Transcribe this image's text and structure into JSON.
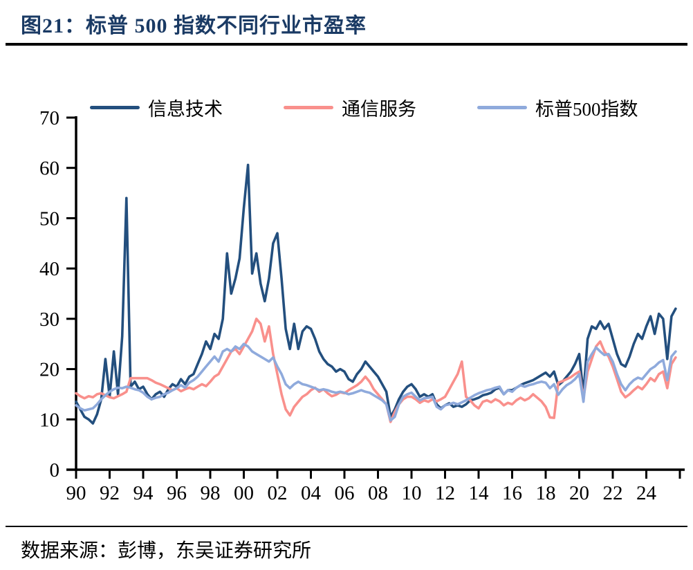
{
  "figure": {
    "title": "图21：标普 500 指数不同行业市盈率",
    "source": "数据来源：彭博，东吴证券研究所"
  },
  "colors": {
    "title_text": "#1A3A64",
    "axis": "#000000",
    "rules": "#000000"
  },
  "chart_data": {
    "type": "line",
    "title": "标普 500 指数不同行业市盈率",
    "xlabel": "",
    "ylabel": "",
    "grid": false,
    "legend_position": "top",
    "ylim": [
      0,
      70
    ],
    "y_ticks": [
      0,
      10,
      20,
      30,
      40,
      50,
      60,
      70
    ],
    "xlim": [
      1989.4,
      2026.3
    ],
    "x_tick_years": [
      1990,
      1992,
      1994,
      1996,
      1998,
      2000,
      2002,
      2004,
      2006,
      2008,
      2010,
      2012,
      2014,
      2016,
      2018,
      2020,
      2022,
      2024,
      2026
    ],
    "x_tick_labels": [
      "90",
      "92",
      "94",
      "96",
      "98",
      "00",
      "02",
      "04",
      "06",
      "08",
      "10",
      "12",
      "14",
      "16",
      "18",
      "20",
      "22",
      "24",
      ""
    ],
    "x_start": 1990.0,
    "x_step_years": 0.25,
    "x_end": 2025.75,
    "series": [
      {
        "name": "信息技术",
        "color": "#234F7E",
        "values": [
          13.5,
          12.0,
          10.5,
          10.0,
          9.2,
          11.0,
          14.0,
          22.0,
          14.5,
          23.5,
          15.0,
          26.5,
          54.0,
          16.5,
          17.5,
          16.0,
          16.5,
          15.0,
          14.0,
          15.0,
          15.5,
          14.5,
          16.0,
          17.0,
          16.5,
          18.0,
          17.0,
          18.5,
          19.0,
          21.0,
          23.0,
          25.5,
          24.0,
          27.0,
          26.0,
          30.0,
          43.0,
          35.0,
          38.0,
          42.0,
          52.0,
          60.6,
          39.0,
          43.0,
          37.0,
          33.5,
          38.0,
          45.0,
          47.0,
          38.0,
          28.0,
          24.0,
          29.0,
          24.0,
          27.5,
          28.5,
          28.0,
          26.0,
          23.5,
          22.0,
          21.0,
          20.5,
          19.5,
          20.0,
          19.5,
          18.0,
          17.5,
          19.0,
          20.0,
          21.5,
          20.5,
          19.5,
          18.5,
          17.0,
          15.5,
          10.5,
          12.0,
          14.0,
          15.5,
          16.5,
          17.0,
          16.0,
          14.5,
          15.0,
          14.5,
          15.0,
          13.0,
          12.2,
          12.8,
          13.2,
          12.5,
          12.8,
          12.5,
          13.0,
          13.8,
          14.0,
          14.3,
          14.8,
          15.0,
          15.3,
          16.0,
          16.3,
          15.0,
          15.8,
          15.8,
          16.3,
          16.8,
          17.2,
          17.5,
          17.8,
          18.3,
          18.8,
          19.3,
          18.5,
          19.5,
          16.8,
          17.5,
          18.5,
          19.5,
          21.0,
          23.0,
          15.0,
          26.0,
          28.5,
          28.0,
          29.5,
          28.0,
          29.0,
          26.0,
          23.0,
          21.0,
          20.5,
          22.5,
          25.0,
          27.0,
          26.0,
          28.5,
          30.5,
          27.0,
          31.0,
          30.0,
          22.0,
          30.5,
          32.0
        ]
      },
      {
        "name": "通信服务",
        "color": "#F9908C",
        "values": [
          15.2,
          14.6,
          14.2,
          14.6,
          14.4,
          15.0,
          15.2,
          14.8,
          14.4,
          14.2,
          14.6,
          15.0,
          15.5,
          18.2,
          18.2,
          18.2,
          18.2,
          18.2,
          17.8,
          17.3,
          17.0,
          16.6,
          16.2,
          15.8,
          16.2,
          15.6,
          16.0,
          16.3,
          16.0,
          16.5,
          17.0,
          16.6,
          17.5,
          18.5,
          19.0,
          20.5,
          22.0,
          23.5,
          24.0,
          23.0,
          24.5,
          26.0,
          27.5,
          30.0,
          29.0,
          25.5,
          28.5,
          23.0,
          19.0,
          15.0,
          12.0,
          10.8,
          12.5,
          13.5,
          14.5,
          15.0,
          15.8,
          16.3,
          15.5,
          16.0,
          15.2,
          14.6,
          14.9,
          15.4,
          15.2,
          15.8,
          16.3,
          16.8,
          17.5,
          18.5,
          17.5,
          16.0,
          15.0,
          14.0,
          13.0,
          9.5,
          11.5,
          13.0,
          14.0,
          14.5,
          14.5,
          14.0,
          13.3,
          13.8,
          13.5,
          14.0,
          13.6,
          14.0,
          14.5,
          16.0,
          17.5,
          19.0,
          21.5,
          14.5,
          13.8,
          12.8,
          12.2,
          13.5,
          13.8,
          13.4,
          14.0,
          13.6,
          12.8,
          13.3,
          13.0,
          13.8,
          14.3,
          13.8,
          14.2,
          15.0,
          14.3,
          13.6,
          12.5,
          10.4,
          10.3,
          17.3,
          17.6,
          18.0,
          18.4,
          19.0,
          19.5,
          14.2,
          19.5,
          22.0,
          24.5,
          25.5,
          23.5,
          22.5,
          20.5,
          18.0,
          15.5,
          14.4,
          15.0,
          15.8,
          16.5,
          16.0,
          17.0,
          18.2,
          17.6,
          19.0,
          19.5,
          16.2,
          21.0,
          22.3
        ]
      },
      {
        "name": "标普500指数",
        "color": "#8FAADC",
        "values": [
          12.8,
          12.2,
          11.8,
          12.0,
          12.2,
          13.0,
          14.0,
          14.8,
          15.5,
          16.0,
          16.3,
          16.2,
          16.5,
          16.3,
          16.0,
          15.8,
          15.3,
          14.5,
          14.0,
          14.3,
          14.5,
          15.0,
          15.3,
          15.8,
          16.2,
          16.8,
          16.3,
          17.3,
          17.8,
          18.5,
          19.5,
          20.5,
          21.5,
          22.5,
          21.5,
          23.5,
          24.0,
          23.5,
          24.5,
          24.0,
          25.0,
          24.5,
          23.5,
          23.0,
          22.5,
          22.0,
          21.5,
          22.3,
          20.5,
          19.0,
          17.0,
          16.2,
          17.0,
          17.5,
          17.0,
          16.8,
          16.5,
          16.2,
          15.8,
          16.0,
          15.8,
          15.5,
          15.3,
          15.5,
          15.3,
          15.0,
          15.2,
          15.5,
          15.8,
          15.5,
          15.3,
          14.8,
          14.3,
          13.8,
          13.0,
          9.8,
          10.5,
          13.0,
          14.5,
          15.0,
          15.3,
          14.5,
          13.8,
          14.2,
          14.3,
          14.5,
          12.5,
          12.0,
          12.8,
          13.0,
          13.3,
          13.0,
          13.4,
          13.8,
          14.3,
          14.8,
          15.2,
          15.5,
          15.8,
          16.0,
          16.3,
          16.5,
          15.0,
          15.8,
          15.5,
          16.3,
          16.8,
          16.5,
          16.8,
          17.0,
          17.3,
          17.5,
          17.3,
          16.2,
          17.0,
          14.9,
          16.0,
          16.8,
          17.3,
          18.0,
          19.0,
          13.5,
          21.5,
          23.0,
          24.3,
          23.5,
          22.8,
          23.0,
          21.5,
          19.0,
          17.0,
          15.8,
          17.0,
          17.8,
          18.3,
          18.0,
          19.0,
          20.0,
          20.5,
          21.3,
          21.8,
          17.8,
          22.5,
          23.5
        ]
      }
    ]
  }
}
